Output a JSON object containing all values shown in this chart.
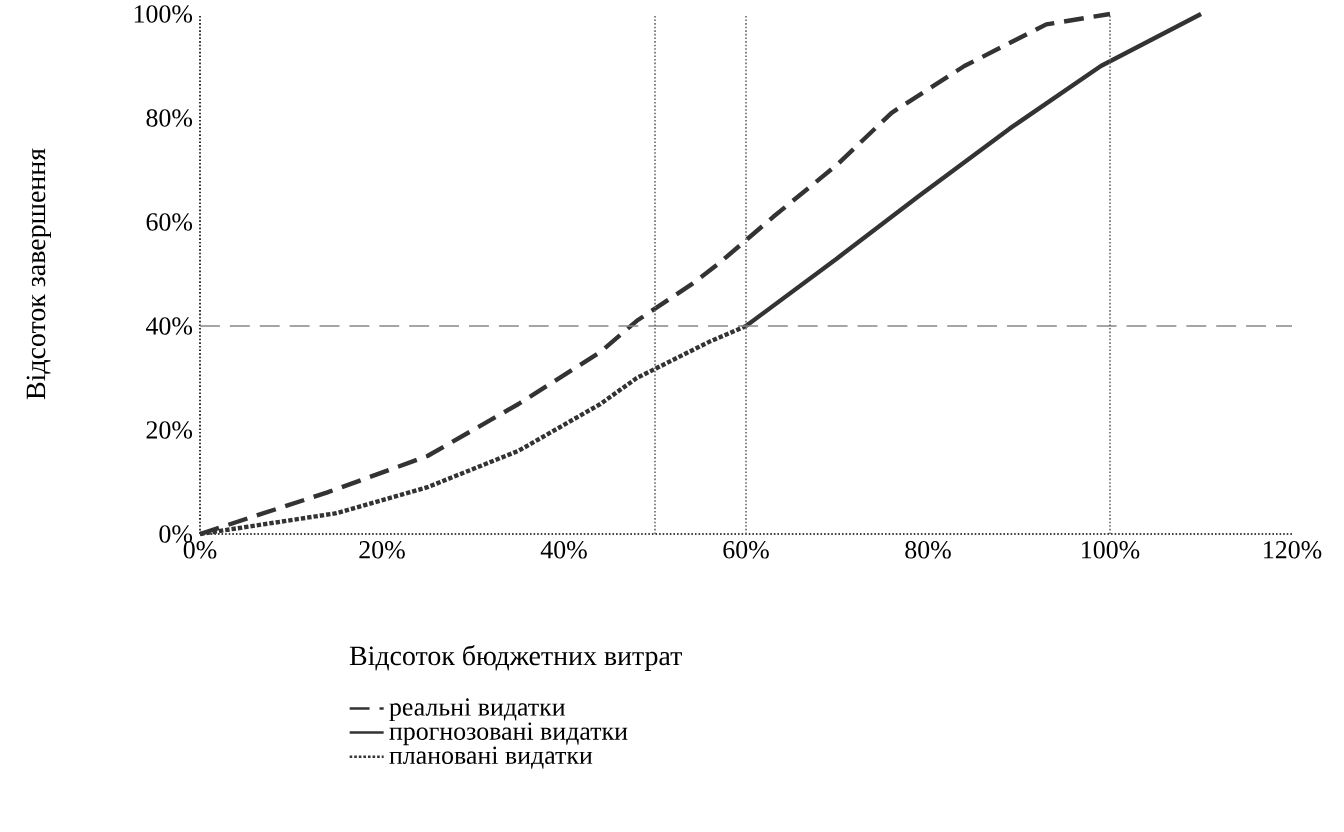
{
  "chart_data": {
    "type": "line",
    "xlabel": "Відсоток бюджетних витрат",
    "ylabel": "Відсоток завершення",
    "xlim": [
      0,
      120
    ],
    "ylim": [
      0,
      100
    ],
    "xticks": [
      {
        "value": 0,
        "label": "0%"
      },
      {
        "value": 20,
        "label": "20%"
      },
      {
        "value": 40,
        "label": "40%"
      },
      {
        "value": 60,
        "label": "60%"
      },
      {
        "value": 80,
        "label": "80%"
      },
      {
        "value": 100,
        "label": "100%"
      },
      {
        "value": 120,
        "label": "120%"
      }
    ],
    "yticks": [
      {
        "value": 0,
        "label": "0%"
      },
      {
        "value": 20,
        "label": "20%"
      },
      {
        "value": 40,
        "label": "40%"
      },
      {
        "value": 60,
        "label": "60%"
      },
      {
        "value": 80,
        "label": "80%"
      },
      {
        "value": 100,
        "label": "100%"
      }
    ],
    "series": [
      {
        "name": "реальні видатки",
        "color": "#333333",
        "line_style": "dashed",
        "x": [
          0,
          14,
          25,
          35,
          44,
          48,
          54,
          57,
          63,
          70,
          76,
          84,
          93,
          100
        ],
        "values": [
          0,
          8,
          15,
          25,
          35,
          41,
          48,
          52,
          61,
          71,
          81,
          90,
          98,
          100
        ]
      },
      {
        "name": "прогнозовані видатки",
        "color": "#333333",
        "line_style": "solid",
        "x": [
          60,
          70,
          79,
          89,
          99,
          110
        ],
        "values": [
          40,
          53,
          65,
          78,
          90,
          100
        ]
      },
      {
        "name": "плановані видатки",
        "color": "#333333",
        "line_style": "dotted",
        "x": [
          0,
          15,
          25,
          35,
          44,
          48,
          56,
          60
        ],
        "values": [
          0,
          4,
          9,
          16,
          25,
          30,
          37,
          40
        ]
      }
    ],
    "ref_lines": [
      {
        "axis": "y",
        "value": 40,
        "color": "#888888",
        "line_style": "dashed"
      },
      {
        "axis": "x",
        "value": 50,
        "color": "#666666",
        "line_style": "dotted"
      },
      {
        "axis": "x",
        "value": 60,
        "color": "#666666",
        "line_style": "dotted"
      },
      {
        "axis": "x",
        "value": 100,
        "color": "#666666",
        "line_style": "dotted"
      }
    ],
    "grid": false,
    "legend": "bottom left",
    "marker": "none"
  }
}
